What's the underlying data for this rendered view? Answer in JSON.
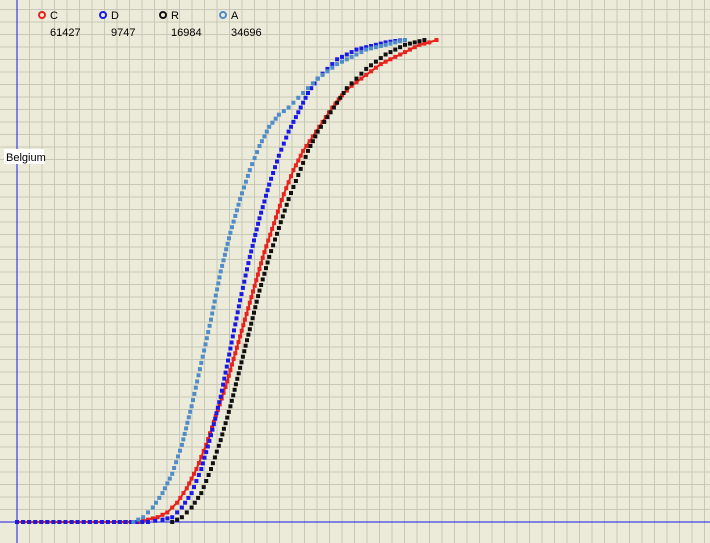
{
  "chart_data": {
    "type": "scatter",
    "y_label": "Belgium",
    "x_range": [
      0,
      100
    ],
    "y_range": [
      0,
      100
    ],
    "grid": true,
    "legend_position": "top-left",
    "series": [
      {
        "name": "C",
        "count": "61427",
        "color": "#e8231e",
        "connected": true,
        "points": [
          [
            0,
            0
          ],
          [
            10,
            0
          ],
          [
            20,
            0
          ],
          [
            25,
            0
          ],
          [
            27,
            0.5
          ],
          [
            29,
            1
          ],
          [
            31,
            2
          ],
          [
            33,
            4
          ],
          [
            35,
            7
          ],
          [
            37,
            11
          ],
          [
            39,
            16
          ],
          [
            41,
            22
          ],
          [
            43,
            28
          ],
          [
            45,
            35
          ],
          [
            47,
            42
          ],
          [
            49,
            49
          ],
          [
            51,
            56
          ],
          [
            53,
            62
          ],
          [
            55,
            68
          ],
          [
            57,
            73
          ],
          [
            59,
            77
          ],
          [
            61,
            80
          ],
          [
            63,
            83
          ],
          [
            65,
            86
          ],
          [
            67,
            88.5
          ],
          [
            69,
            90.5
          ],
          [
            71,
            92
          ],
          [
            73,
            93.5
          ],
          [
            75,
            95
          ],
          [
            77,
            96
          ],
          [
            79,
            97
          ],
          [
            81,
            98
          ],
          [
            83,
            99
          ],
          [
            85,
            99.5
          ],
          [
            86.5,
            100
          ]
        ]
      },
      {
        "name": "D",
        "count": "9747",
        "color": "#1a1ae6",
        "connected": false,
        "points": [
          [
            0,
            0
          ],
          [
            10,
            0
          ],
          [
            20,
            0
          ],
          [
            27,
            0
          ],
          [
            30,
            0.5
          ],
          [
            32,
            1
          ],
          [
            34,
            3
          ],
          [
            36,
            6
          ],
          [
            38,
            11
          ],
          [
            40,
            18
          ],
          [
            42,
            26
          ],
          [
            44,
            36
          ],
          [
            46,
            46
          ],
          [
            48,
            55
          ],
          [
            50,
            63
          ],
          [
            52,
            70
          ],
          [
            54,
            76
          ],
          [
            56,
            81
          ],
          [
            58,
            85
          ],
          [
            60,
            89
          ],
          [
            62,
            92
          ],
          [
            64,
            94
          ],
          [
            66,
            96
          ],
          [
            68,
            97
          ],
          [
            70,
            98
          ],
          [
            72,
            98.5
          ],
          [
            74,
            99
          ],
          [
            76,
            99.5
          ],
          [
            78,
            99.8
          ],
          [
            80,
            100
          ]
        ]
      },
      {
        "name": "R",
        "count": "16984",
        "color": "#111111",
        "connected": false,
        "points": [
          [
            32,
            0
          ],
          [
            34,
            1
          ],
          [
            36,
            3
          ],
          [
            38,
            6
          ],
          [
            40,
            11
          ],
          [
            42,
            17
          ],
          [
            44,
            24
          ],
          [
            46,
            32
          ],
          [
            48,
            40
          ],
          [
            50,
            48
          ],
          [
            52,
            55
          ],
          [
            54,
            61
          ],
          [
            56,
            67
          ],
          [
            58,
            72
          ],
          [
            60,
            77
          ],
          [
            62,
            81
          ],
          [
            64,
            84
          ],
          [
            66,
            87
          ],
          [
            68,
            90
          ],
          [
            70,
            92
          ],
          [
            72,
            94
          ],
          [
            74,
            95.5
          ],
          [
            76,
            97
          ],
          [
            78,
            98
          ],
          [
            80,
            99
          ],
          [
            82,
            99.5
          ],
          [
            84,
            100
          ]
        ]
      },
      {
        "name": "A",
        "count": "34696",
        "color": "#4f8cc8",
        "connected": false,
        "points": [
          [
            24,
            0
          ],
          [
            26,
            1
          ],
          [
            28,
            3
          ],
          [
            30,
            6
          ],
          [
            32,
            10
          ],
          [
            34,
            16
          ],
          [
            36,
            24
          ],
          [
            38,
            33
          ],
          [
            40,
            42
          ],
          [
            42,
            52
          ],
          [
            44,
            60
          ],
          [
            46,
            67
          ],
          [
            48,
            73
          ],
          [
            50,
            78
          ],
          [
            52,
            82
          ],
          [
            54,
            84.5
          ],
          [
            56,
            86
          ],
          [
            58,
            88
          ],
          [
            60,
            90
          ],
          [
            62,
            92
          ],
          [
            64,
            93.5
          ],
          [
            66,
            95
          ],
          [
            68,
            96
          ],
          [
            70,
            97
          ],
          [
            72,
            98
          ],
          [
            74,
            98.5
          ],
          [
            76,
            99
          ],
          [
            78,
            99.5
          ],
          [
            80,
            100
          ]
        ]
      }
    ]
  }
}
